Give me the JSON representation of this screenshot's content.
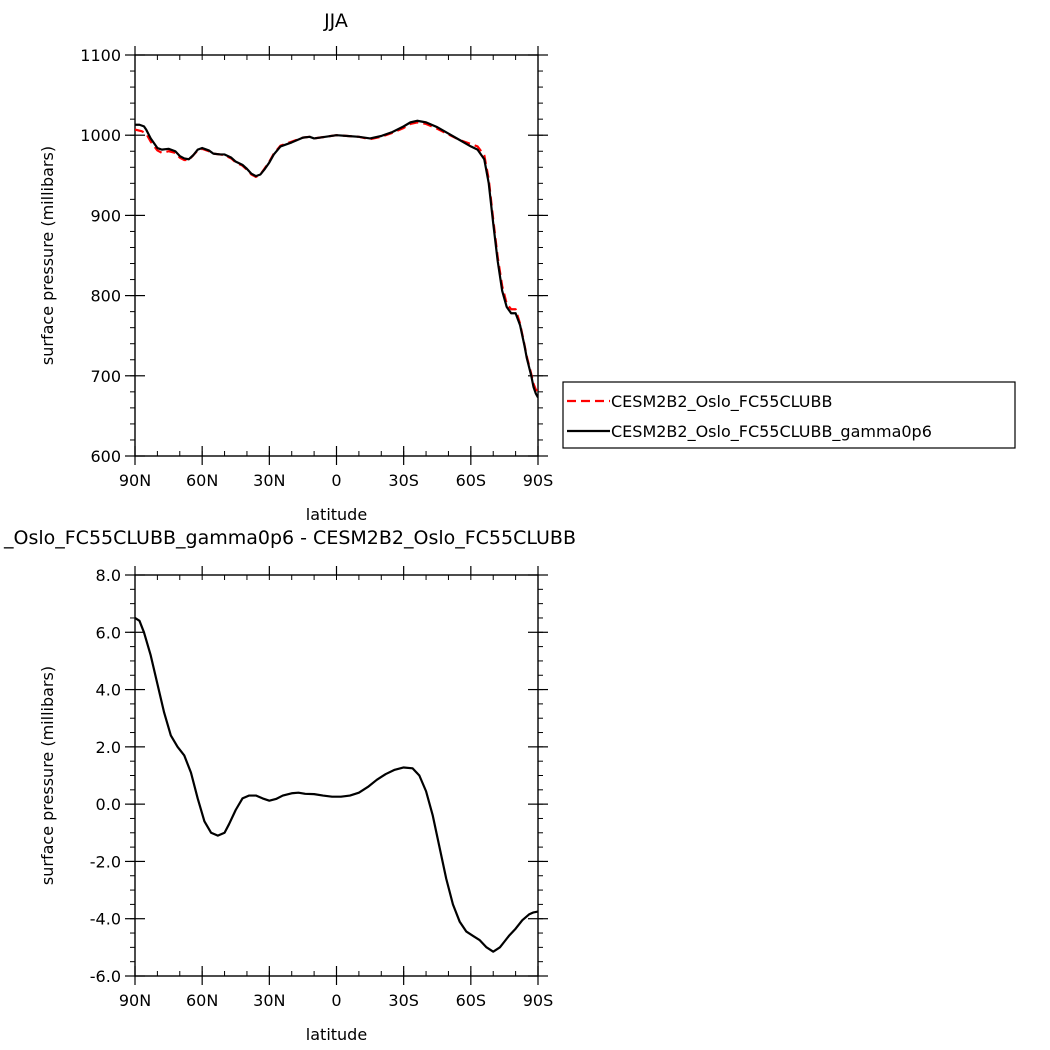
{
  "chart_data": [
    {
      "type": "line",
      "title": "JJA",
      "xlabel": "latitude",
      "ylabel": "surface pressure (millibars)",
      "xlim": [
        90,
        -90
      ],
      "ylim": [
        600,
        1100
      ],
      "xticks": [
        {
          "value": 90,
          "label": "90N"
        },
        {
          "value": 60,
          "label": "60N"
        },
        {
          "value": 30,
          "label": "30N"
        },
        {
          "value": 0,
          "label": "0"
        },
        {
          "value": -30,
          "label": "30S"
        },
        {
          "value": -60,
          "label": "60S"
        },
        {
          "value": -90,
          "label": "90S"
        }
      ],
      "yticks": [
        {
          "value": 1100,
          "label": "1100"
        },
        {
          "value": 1000,
          "label": "1000"
        },
        {
          "value": 900,
          "label": "900"
        },
        {
          "value": 800,
          "label": "800"
        },
        {
          "value": 700,
          "label": "700"
        },
        {
          "value": 600,
          "label": "600"
        }
      ],
      "legend_position": "right",
      "grid": false,
      "series": [
        {
          "name": "CESM2B2_Oslo_FC55CLUBB",
          "color": "#ff0000",
          "dash": "dashed",
          "x": [
            90,
            87,
            85,
            83,
            80,
            78,
            75,
            72,
            70,
            68,
            66,
            64,
            62,
            60,
            57,
            55,
            52,
            50,
            47,
            45,
            42,
            40,
            38,
            36,
            34,
            32,
            30,
            28,
            25,
            20,
            15,
            12,
            10,
            5,
            0,
            -5,
            -10,
            -15,
            -20,
            -25,
            -30,
            -33,
            -36,
            -40,
            -45,
            -50,
            -55,
            -60,
            -63,
            -66,
            -68,
            -70,
            -72,
            -74,
            -76,
            -78,
            -80,
            -82,
            -84,
            -85,
            -87,
            -88,
            -89,
            -90
          ],
          "y": [
            1007,
            1005,
            1002,
            992,
            981,
            978,
            980,
            978,
            972,
            969,
            969,
            975,
            981,
            983,
            980,
            977,
            976,
            975,
            971,
            966,
            962,
            957,
            951,
            948,
            951,
            959,
            967,
            977,
            987,
            992,
            997,
            998,
            996,
            998,
            1000,
            999,
            998,
            995,
            998,
            1003,
            1009,
            1014,
            1016,
            1014,
            1008,
            1001,
            994,
            989,
            986,
            975,
            945,
            895,
            848,
            812,
            790,
            783,
            783,
            765,
            738,
            724,
            702,
            690,
            683,
            680
          ]
        },
        {
          "name": "CESM2B2_Oslo_FC55CLUBB_gamma0p6",
          "color": "#000000",
          "dash": "solid",
          "x": [
            90,
            88,
            86,
            85,
            83,
            80,
            78,
            75,
            72,
            70,
            68,
            66,
            64,
            62,
            60,
            57,
            55,
            52,
            50,
            47,
            45,
            42,
            40,
            38,
            36,
            34,
            32,
            30,
            28,
            25,
            20,
            15,
            12,
            10,
            5,
            0,
            -5,
            -10,
            -15,
            -20,
            -25,
            -30,
            -33,
            -36,
            -40,
            -45,
            -50,
            -55,
            -60,
            -63,
            -66,
            -68,
            -70,
            -72,
            -74,
            -76,
            -78,
            -80,
            -82,
            -84,
            -85,
            -87,
            -88,
            -89,
            -90
          ],
          "y": [
            1013,
            1013,
            1011,
            1007,
            996,
            984,
            982,
            983,
            980,
            974,
            971,
            970,
            975,
            982,
            984,
            981,
            977,
            976,
            976,
            972,
            967,
            963,
            958,
            952,
            949,
            951,
            958,
            966,
            976,
            986,
            991,
            997,
            998,
            996,
            998,
            1000,
            999,
            998,
            996,
            999,
            1004,
            1011,
            1016,
            1018,
            1016,
            1010,
            1002,
            994,
            986,
            982,
            970,
            940,
            890,
            843,
            806,
            786,
            778,
            778,
            763,
            737,
            722,
            700,
            686,
            678,
            673
          ]
        }
      ]
    },
    {
      "type": "line",
      "title": "_Oslo_FC55CLUBB_gamma0p6 - CESM2B2_Oslo_FC55CLUBB",
      "xlabel": "latitude",
      "ylabel": "surface pressure (millibars)",
      "xlim": [
        90,
        -90
      ],
      "ylim": [
        -6.0,
        8.0
      ],
      "xticks": [
        {
          "value": 90,
          "label": "90N"
        },
        {
          "value": 60,
          "label": "60N"
        },
        {
          "value": 30,
          "label": "30N"
        },
        {
          "value": 0,
          "label": "0"
        },
        {
          "value": -30,
          "label": "30S"
        },
        {
          "value": -60,
          "label": "60S"
        },
        {
          "value": -90,
          "label": "90S"
        }
      ],
      "yticks": [
        {
          "value": 8.0,
          "label": "8.0"
        },
        {
          "value": 6.0,
          "label": "6.0"
        },
        {
          "value": 4.0,
          "label": "4.0"
        },
        {
          "value": 2.0,
          "label": "2.0"
        },
        {
          "value": 0.0,
          "label": "0.0"
        },
        {
          "value": -2.0,
          "label": "-2.0"
        },
        {
          "value": -4.0,
          "label": "-4.0"
        },
        {
          "value": -6.0,
          "label": "-6.0"
        }
      ],
      "grid": false,
      "series": [
        {
          "color": "#000000",
          "dash": "solid",
          "x": [
            90,
            88,
            86,
            83,
            80,
            77,
            74,
            71,
            68,
            65,
            62,
            59,
            56,
            53,
            50,
            48,
            45,
            42,
            39,
            36,
            33,
            30,
            27,
            24,
            20,
            17,
            14,
            10,
            6,
            2,
            -2,
            -6,
            -10,
            -14,
            -18,
            -22,
            -26,
            -30,
            -34,
            -37,
            -40,
            -43,
            -46,
            -49,
            -52,
            -55,
            -58,
            -61,
            -64,
            -67,
            -70,
            -73,
            -75,
            -77,
            -80,
            -83,
            -86,
            -88,
            -90
          ],
          "y": [
            6.5,
            6.4,
            6.0,
            5.2,
            4.2,
            3.2,
            2.4,
            2.0,
            1.7,
            1.1,
            0.2,
            -0.6,
            -1.0,
            -1.1,
            -1.0,
            -0.7,
            -0.2,
            0.2,
            0.3,
            0.3,
            0.2,
            0.12,
            0.18,
            0.3,
            0.38,
            0.4,
            0.36,
            0.35,
            0.3,
            0.26,
            0.26,
            0.3,
            0.4,
            0.6,
            0.85,
            1.05,
            1.2,
            1.28,
            1.25,
            1.0,
            0.45,
            -0.4,
            -1.5,
            -2.6,
            -3.5,
            -4.1,
            -4.45,
            -4.6,
            -4.75,
            -5.0,
            -5.15,
            -5.0,
            -4.8,
            -4.6,
            -4.35,
            -4.05,
            -3.85,
            -3.78,
            -3.75
          ]
        }
      ]
    }
  ]
}
